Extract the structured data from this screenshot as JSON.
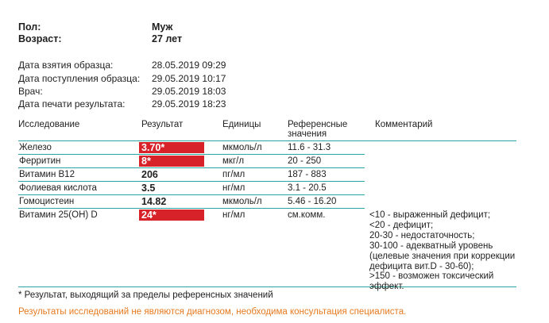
{
  "patient": {
    "sex_label": "Пол:",
    "sex_value": "Муж",
    "age_label": "Возраст:",
    "age_value": "27 лет"
  },
  "meta": [
    {
      "label": "Дата взятия образца:",
      "value": "28.05.2019 09:29"
    },
    {
      "label": "Дата поступления образца:",
      "value": "29.05.2019 10:17"
    },
    {
      "label": "Врач:",
      "value": "29.05.2019 18:03"
    },
    {
      "label": "Дата печати результата:",
      "value": "29.05.2019 18:23"
    }
  ],
  "table": {
    "headers": {
      "study": "Исследование",
      "result": "Результат",
      "units": "Единицы",
      "reference": "Референсные\nзначения",
      "comment": "Комментарий"
    },
    "rows": [
      {
        "name": "Железо",
        "result": "3.70*",
        "flagged": true,
        "units": "мкмоль/л",
        "reference": "11.6 - 31.3"
      },
      {
        "name": "Ферритин",
        "result": "8*",
        "flagged": true,
        "units": "мкг/л",
        "reference": "20 - 250"
      },
      {
        "name": "Витамин B12",
        "result": "206",
        "flagged": false,
        "units": "пг/мл",
        "reference": "187 - 883"
      },
      {
        "name": "Фолиевая кислота",
        "result": "3.5",
        "flagged": false,
        "units": "нг/мл",
        "reference": "3.1 - 20.5"
      },
      {
        "name": "Гомоцистеин",
        "result": "14.82",
        "flagged": false,
        "units": "мкмоль/л",
        "reference": "5.46 - 16.20"
      },
      {
        "name": "Витамин 25(OH) D",
        "result": "24*",
        "flagged": true,
        "units": "нг/мл",
        "reference": "см.комм."
      }
    ],
    "vitd_comment": [
      "<10 - выраженный дефицит;",
      "<20 - дефицит;",
      "20-30 - недостаточность;",
      "30-100 - адекватный уровень",
      "(целевые значения при коррекции",
      "дефицита вит.D - 30-60);",
      ">150 - возможен токсический",
      "эффект."
    ]
  },
  "footnote": "* Результат, выходящий за пределы референсных значений",
  "disclaimer": "Результаты исследований не являются диагнозом, необходима консультация специалиста.",
  "colors": {
    "rule": "#2aa6a0",
    "flag": "#d8222a",
    "disclaimer": "#e57a1f"
  }
}
